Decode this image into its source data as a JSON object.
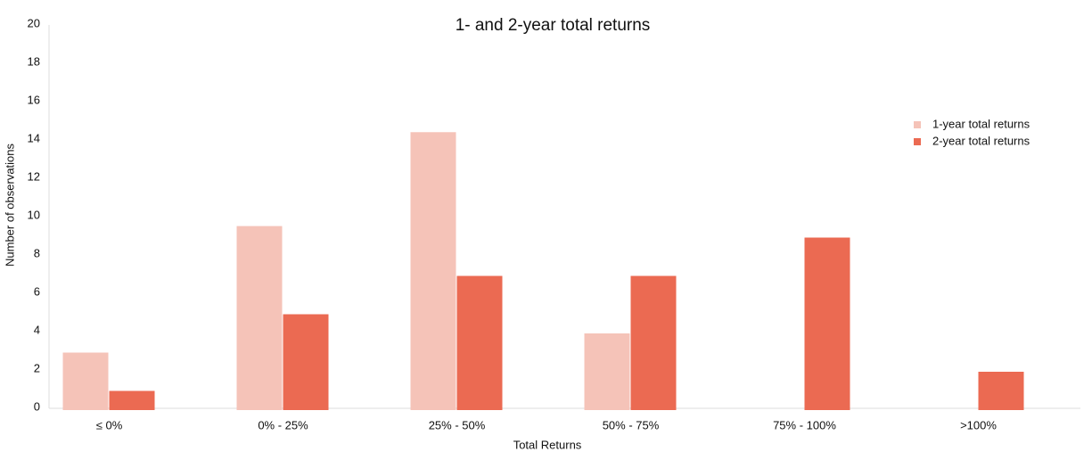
{
  "chart_data": {
    "type": "bar",
    "title": "1- and 2-year total returns",
    "x_label": "Total Returns",
    "y_label": "Number of observations",
    "categories": [
      "≤ 0%",
      "0% - 25%",
      "25% - 50%",
      "50% - 75%",
      "75% - 100%",
      ">100%"
    ],
    "series": [
      {
        "name": "1-year total returns",
        "color": "#f5c3b8",
        "values": [
          3,
          9.6,
          14.5,
          4,
          0,
          0
        ]
      },
      {
        "name": "2-year total returns",
        "color": "#eb6a52",
        "values": [
          1,
          5,
          7,
          7,
          9,
          2
        ]
      }
    ],
    "ylim": [
      0,
      20
    ],
    "yticks": [
      0,
      2,
      4,
      6,
      8,
      10,
      12,
      14,
      16,
      18,
      20
    ],
    "grid": false,
    "legend": "upper right"
  }
}
